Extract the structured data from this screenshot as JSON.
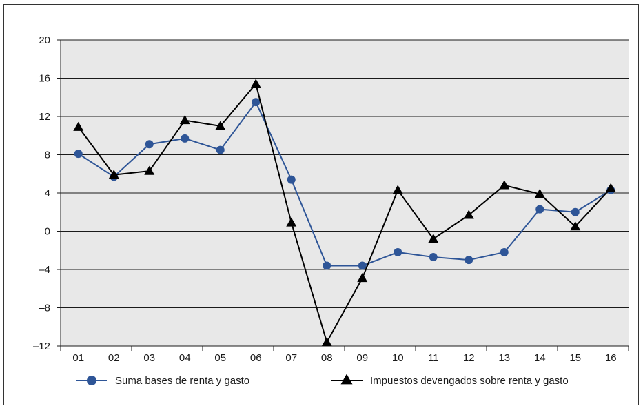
{
  "chart_data": {
    "type": "line",
    "categories": [
      "01",
      "02",
      "03",
      "04",
      "05",
      "06",
      "07",
      "08",
      "09",
      "10",
      "11",
      "12",
      "13",
      "14",
      "15",
      "16"
    ],
    "series": [
      {
        "name": "Suma bases de renta y gasto",
        "color": "#2e5597",
        "marker": "circle",
        "values": [
          8.1,
          5.7,
          9.1,
          9.7,
          8.5,
          13.5,
          5.4,
          -3.6,
          -3.6,
          -2.2,
          -2.7,
          -3.0,
          -2.2,
          2.3,
          2.0,
          4.3
        ]
      },
      {
        "name": "Impuestos devengados sobre renta y gasto",
        "color": "#000000",
        "marker": "triangle",
        "values": [
          10.9,
          5.9,
          6.3,
          11.6,
          11.0,
          15.4,
          0.9,
          -11.6,
          -4.9,
          4.3,
          -0.8,
          1.7,
          4.8,
          3.9,
          0.5,
          4.5
        ]
      }
    ],
    "yticks": [
      "20",
      "16",
      "12",
      "8",
      "4",
      "0",
      "–4",
      "–8",
      "–12"
    ],
    "ylim": [
      -12,
      20
    ],
    "grid": true,
    "legend_position": "bottom",
    "background_color": "#e8e8e8"
  }
}
